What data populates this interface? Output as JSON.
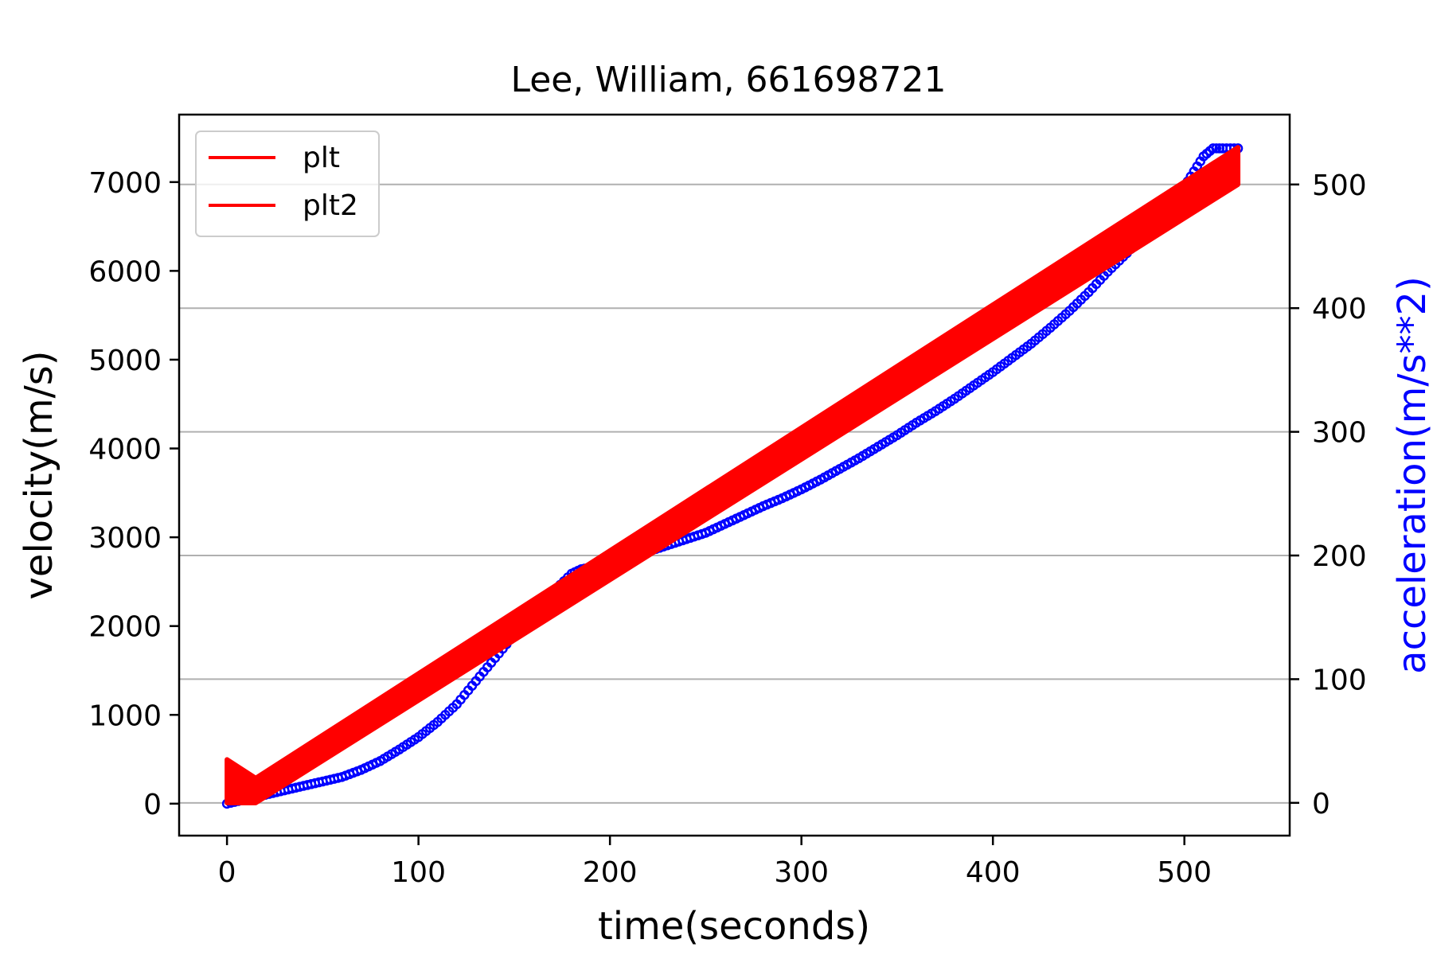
{
  "chart_data": {
    "type": "line",
    "title": "Lee, William, 661698721",
    "xlabel": "time(seconds)",
    "ylabel": "velocity(m/s)",
    "ylabel_right": "acceleration(m/s**2)",
    "xlim": [
      -25,
      555
    ],
    "ylim": [
      -360,
      7760
    ],
    "ylim_right": [
      -26.5,
      556.5
    ],
    "xticks": [
      0,
      100,
      200,
      300,
      400,
      500
    ],
    "yticks": [
      0,
      1000,
      2000,
      3000,
      4000,
      5000,
      6000,
      7000
    ],
    "yticks_right": [
      0,
      100,
      200,
      300,
      400,
      500
    ],
    "grid": "horizontal lines at right-axis ticks",
    "legend": {
      "position": "top-left",
      "entries": [
        {
          "label": "plt",
          "color": "#ff0000"
        },
        {
          "label": "plt2",
          "color": "#ff0000"
        }
      ]
    },
    "colors": {
      "velocity": "#0000ff",
      "acceleration": "#ff0000",
      "grid": "#b0b0b0",
      "right_label": "#0000ff"
    },
    "series": [
      {
        "axis": "left",
        "style": "circle-markers",
        "x": [
          0,
          10,
          20,
          30,
          40,
          50,
          60,
          70,
          80,
          90,
          100,
          110,
          120,
          130,
          140,
          150,
          160,
          170,
          180,
          185,
          190,
          200,
          210,
          220,
          230,
          240,
          250,
          260,
          270,
          280,
          290,
          300,
          310,
          320,
          330,
          340,
          350,
          360,
          370,
          380,
          390,
          400,
          410,
          420,
          430,
          440,
          450,
          460,
          470,
          480,
          490,
          500,
          505,
          510,
          515,
          520,
          528
        ],
        "values": [
          0,
          50,
          100,
          150,
          200,
          250,
          300,
          380,
          480,
          610,
          750,
          920,
          1120,
          1380,
          1640,
          1900,
          2160,
          2380,
          2590,
          2640,
          2660,
          2700,
          2760,
          2840,
          2910,
          2980,
          3050,
          3150,
          3250,
          3350,
          3440,
          3540,
          3650,
          3770,
          3890,
          4020,
          4150,
          4290,
          4420,
          4560,
          4710,
          4860,
          5020,
          5180,
          5360,
          5550,
          5760,
          5990,
          6200,
          6430,
          6690,
          6950,
          7120,
          7290,
          7380,
          7380,
          7380
        ]
      },
      {
        "axis": "right",
        "style": "thick-band",
        "x": [
          0,
          15,
          528
        ],
        "upper": [
          35,
          20,
          530
        ],
        "lower": [
          0,
          0,
          500
        ]
      }
    ]
  }
}
